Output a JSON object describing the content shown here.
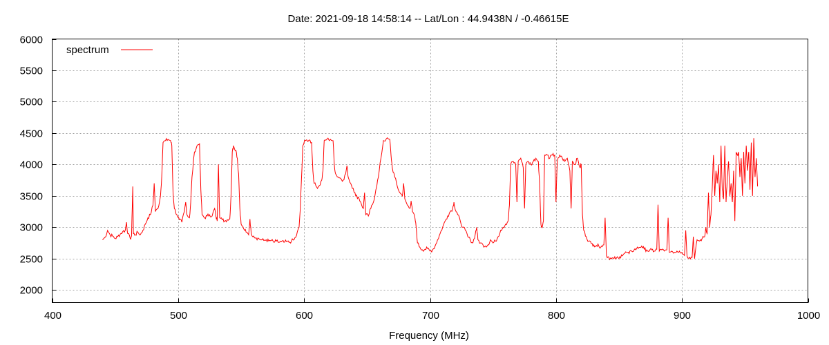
{
  "chart_data": {
    "type": "line",
    "title": "Date: 2021-09-18 14:58:14  --  Lat/Lon : 44.9438N / -0.46615E",
    "xlabel": "Frequency (MHz)",
    "ylabel": "",
    "xlim": [
      400,
      1000
    ],
    "ylim": [
      1800,
      6000
    ],
    "x_ticks": [
      400,
      500,
      600,
      700,
      800,
      900,
      1000
    ],
    "y_ticks": [
      2000,
      2500,
      3000,
      3500,
      4000,
      4500,
      5000,
      5500,
      6000
    ],
    "grid": true,
    "legend": {
      "position": "top-left",
      "entries": [
        "spectrum"
      ]
    },
    "series": [
      {
        "name": "spectrum",
        "color": "#ff0000",
        "points": [
          [
            440,
            2800
          ],
          [
            442,
            2840
          ],
          [
            444,
            2950
          ],
          [
            446,
            2880
          ],
          [
            448,
            2860
          ],
          [
            450,
            2820
          ],
          [
            452,
            2850
          ],
          [
            454,
            2890
          ],
          [
            456,
            2930
          ],
          [
            458,
            2950
          ],
          [
            459,
            3080
          ],
          [
            460,
            2900
          ],
          [
            462,
            2820
          ],
          [
            463,
            2860
          ],
          [
            464,
            3650
          ],
          [
            464.5,
            2900
          ],
          [
            466,
            2880
          ],
          [
            468,
            2920
          ],
          [
            470,
            2880
          ],
          [
            472,
            2950
          ],
          [
            474,
            3050
          ],
          [
            476,
            3150
          ],
          [
            478,
            3200
          ],
          [
            480,
            3350
          ],
          [
            481,
            3700
          ],
          [
            482,
            3250
          ],
          [
            484,
            3300
          ],
          [
            486,
            3500
          ],
          [
            487,
            3800
          ],
          [
            488,
            4350
          ],
          [
            490,
            4380
          ],
          [
            492,
            4400
          ],
          [
            494,
            4380
          ],
          [
            495,
            4300
          ],
          [
            496,
            3550
          ],
          [
            497,
            3300
          ],
          [
            499,
            3200
          ],
          [
            501,
            3120
          ],
          [
            503,
            3080
          ],
          [
            505,
            3250
          ],
          [
            506,
            3400
          ],
          [
            507,
            3200
          ],
          [
            509,
            3150
          ],
          [
            510,
            3400
          ],
          [
            511,
            3800
          ],
          [
            513,
            4200
          ],
          [
            515,
            4300
          ],
          [
            517,
            4330
          ],
          [
            518,
            3600
          ],
          [
            519,
            3200
          ],
          [
            521,
            3150
          ],
          [
            523,
            3180
          ],
          [
            525,
            3200
          ],
          [
            527,
            3180
          ],
          [
            529,
            3300
          ],
          [
            530,
            3180
          ],
          [
            531,
            3100
          ],
          [
            532,
            4000
          ],
          [
            533,
            3150
          ],
          [
            535,
            3120
          ],
          [
            537,
            3100
          ],
          [
            539,
            3120
          ],
          [
            541,
            3130
          ],
          [
            542,
            3500
          ],
          [
            543,
            4200
          ],
          [
            544,
            4300
          ],
          [
            546,
            4220
          ],
          [
            547,
            4100
          ],
          [
            548,
            3850
          ],
          [
            549,
            3300
          ],
          [
            550,
            3050
          ],
          [
            552,
            2980
          ],
          [
            554,
            2920
          ],
          [
            556,
            2880
          ],
          [
            557,
            3130
          ],
          [
            558,
            2900
          ],
          [
            560,
            2860
          ],
          [
            562,
            2830
          ],
          [
            564,
            2820
          ],
          [
            566,
            2800
          ],
          [
            568,
            2790
          ],
          [
            570,
            2800
          ],
          [
            572,
            2780
          ],
          [
            574,
            2790
          ],
          [
            576,
            2760
          ],
          [
            578,
            2780
          ],
          [
            580,
            2760
          ],
          [
            582,
            2770
          ],
          [
            584,
            2760
          ],
          [
            586,
            2770
          ],
          [
            588,
            2760
          ],
          [
            590,
            2780
          ],
          [
            592,
            2800
          ],
          [
            594,
            2870
          ],
          [
            596,
            3000
          ],
          [
            597,
            3300
          ],
          [
            598,
            3800
          ],
          [
            599,
            4300
          ],
          [
            601,
            4380
          ],
          [
            604,
            4390
          ],
          [
            606,
            4350
          ],
          [
            607,
            3900
          ],
          [
            608,
            3700
          ],
          [
            610,
            3640
          ],
          [
            612,
            3660
          ],
          [
            614,
            3750
          ],
          [
            615,
            3900
          ],
          [
            616,
            4380
          ],
          [
            618,
            4400
          ],
          [
            621,
            4400
          ],
          [
            623,
            4380
          ],
          [
            624,
            4000
          ],
          [
            625,
            3850
          ],
          [
            627,
            3800
          ],
          [
            629,
            3780
          ],
          [
            631,
            3750
          ],
          [
            633,
            3850
          ],
          [
            634,
            3980
          ],
          [
            635,
            3800
          ],
          [
            637,
            3700
          ],
          [
            639,
            3620
          ],
          [
            641,
            3500
          ],
          [
            643,
            3480
          ],
          [
            645,
            3400
          ],
          [
            647,
            3300
          ],
          [
            648,
            3550
          ],
          [
            649,
            3200
          ],
          [
            651,
            3180
          ],
          [
            653,
            3300
          ],
          [
            655,
            3400
          ],
          [
            657,
            3600
          ],
          [
            659,
            3800
          ],
          [
            661,
            4100
          ],
          [
            663,
            4380
          ],
          [
            665,
            4400
          ],
          [
            668,
            4400
          ],
          [
            669,
            4150
          ],
          [
            670,
            3950
          ],
          [
            672,
            3800
          ],
          [
            674,
            3650
          ],
          [
            676,
            3550
          ],
          [
            678,
            3500
          ],
          [
            679,
            3700
          ],
          [
            680,
            3450
          ],
          [
            682,
            3350
          ],
          [
            684,
            3300
          ],
          [
            685,
            3420
          ],
          [
            686,
            3250
          ],
          [
            688,
            3150
          ],
          [
            689,
            3000
          ],
          [
            690,
            2750
          ],
          [
            692,
            2680
          ],
          [
            694,
            2640
          ],
          [
            696,
            2650
          ],
          [
            698,
            2660
          ],
          [
            700,
            2620
          ],
          [
            702,
            2640
          ],
          [
            704,
            2700
          ],
          [
            706,
            2800
          ],
          [
            708,
            2900
          ],
          [
            710,
            3000
          ],
          [
            712,
            3100
          ],
          [
            714,
            3180
          ],
          [
            716,
            3250
          ],
          [
            718,
            3300
          ],
          [
            719,
            3400
          ],
          [
            720,
            3280
          ],
          [
            722,
            3200
          ],
          [
            724,
            3100
          ],
          [
            726,
            3000
          ],
          [
            728,
            2950
          ],
          [
            730,
            2850
          ],
          [
            732,
            2800
          ],
          [
            734,
            2750
          ],
          [
            736,
            2900
          ],
          [
            737,
            3000
          ],
          [
            738,
            2800
          ],
          [
            740,
            2750
          ],
          [
            742,
            2720
          ],
          [
            744,
            2700
          ],
          [
            746,
            2720
          ],
          [
            748,
            2800
          ],
          [
            750,
            2750
          ],
          [
            752,
            2780
          ],
          [
            754,
            2850
          ],
          [
            756,
            2950
          ],
          [
            758,
            3000
          ],
          [
            760,
            3050
          ],
          [
            762,
            3100
          ],
          [
            763,
            3350
          ],
          [
            764,
            4000
          ],
          [
            766,
            4050
          ],
          [
            768,
            4000
          ],
          [
            769,
            3400
          ],
          [
            770,
            4050
          ],
          [
            772,
            4100
          ],
          [
            774,
            3950
          ],
          [
            775,
            3300
          ],
          [
            776,
            4000
          ],
          [
            778,
            4050
          ],
          [
            780,
            4000
          ],
          [
            782,
            4050
          ],
          [
            784,
            4100
          ],
          [
            786,
            4050
          ],
          [
            787,
            3700
          ],
          [
            788,
            3050
          ],
          [
            789,
            3000
          ],
          [
            790,
            3100
          ],
          [
            791,
            4150
          ],
          [
            793,
            4150
          ],
          [
            795,
            4100
          ],
          [
            797,
            4150
          ],
          [
            799,
            4150
          ],
          [
            800,
            3400
          ],
          [
            801,
            4050
          ],
          [
            803,
            4150
          ],
          [
            805,
            4100
          ],
          [
            807,
            4050
          ],
          [
            809,
            4100
          ],
          [
            811,
            3900
          ],
          [
            812,
            3300
          ],
          [
            813,
            4050
          ],
          [
            815,
            4000
          ],
          [
            817,
            4100
          ],
          [
            819,
            3950
          ],
          [
            820,
            4000
          ],
          [
            821,
            3200
          ],
          [
            822,
            2950
          ],
          [
            824,
            2850
          ],
          [
            826,
            2780
          ],
          [
            828,
            2740
          ],
          [
            830,
            2720
          ],
          [
            832,
            2710
          ],
          [
            834,
            2700
          ],
          [
            836,
            2700
          ],
          [
            838,
            2720
          ],
          [
            839,
            3150
          ],
          [
            840,
            2550
          ],
          [
            842,
            2520
          ],
          [
            844,
            2500
          ],
          [
            846,
            2500
          ],
          [
            848,
            2510
          ],
          [
            850,
            2500
          ],
          [
            852,
            2560
          ],
          [
            854,
            2580
          ],
          [
            856,
            2600
          ],
          [
            858,
            2580
          ],
          [
            860,
            2620
          ],
          [
            862,
            2640
          ],
          [
            864,
            2660
          ],
          [
            866,
            2680
          ],
          [
            868,
            2700
          ],
          [
            870,
            2650
          ],
          [
            872,
            2640
          ],
          [
            874,
            2620
          ],
          [
            876,
            2640
          ],
          [
            878,
            2620
          ],
          [
            880,
            2650
          ],
          [
            881,
            3360
          ],
          [
            882,
            2620
          ],
          [
            884,
            2640
          ],
          [
            886,
            2620
          ],
          [
            888,
            2640
          ],
          [
            889,
            3150
          ],
          [
            890,
            2600
          ],
          [
            892,
            2620
          ],
          [
            894,
            2600
          ],
          [
            896,
            2620
          ],
          [
            898,
            2620
          ],
          [
            900,
            2600
          ],
          [
            902,
            2550
          ],
          [
            903,
            2950
          ],
          [
            904,
            2540
          ],
          [
            906,
            2520
          ],
          [
            908,
            2520
          ],
          [
            909,
            2850
          ],
          [
            910,
            2500
          ],
          [
            912,
            2800
          ],
          [
            914,
            2780
          ],
          [
            916,
            2820
          ],
          [
            918,
            2850
          ],
          [
            919,
            3000
          ],
          [
            920,
            2900
          ],
          [
            921,
            3550
          ],
          [
            922,
            3000
          ],
          [
            923,
            3200
          ],
          [
            924,
            3600
          ],
          [
            925,
            4150
          ],
          [
            926,
            3500
          ],
          [
            927,
            3900
          ],
          [
            928,
            3700
          ],
          [
            929,
            4000
          ],
          [
            930,
            3400
          ],
          [
            931,
            4300
          ],
          [
            932,
            3600
          ],
          [
            933,
            3450
          ],
          [
            934,
            4300
          ],
          [
            935,
            3400
          ],
          [
            936,
            3800
          ],
          [
            937,
            4050
          ],
          [
            938,
            3500
          ],
          [
            939,
            3700
          ],
          [
            940,
            3400
          ],
          [
            941,
            3900
          ],
          [
            942,
            3100
          ],
          [
            943,
            4200
          ],
          [
            944,
            4150
          ],
          [
            945,
            4200
          ],
          [
            946,
            3800
          ],
          [
            947,
            4100
          ],
          [
            948,
            3500
          ],
          [
            949,
            4200
          ],
          [
            950,
            3700
          ],
          [
            951,
            4300
          ],
          [
            952,
            3900
          ],
          [
            953,
            4200
          ],
          [
            954,
            3600
          ],
          [
            955,
            4350
          ],
          [
            956,
            3500
          ],
          [
            957,
            4420
          ],
          [
            958,
            3800
          ],
          [
            959,
            4100
          ],
          [
            960,
            3650
          ]
        ]
      }
    ]
  }
}
